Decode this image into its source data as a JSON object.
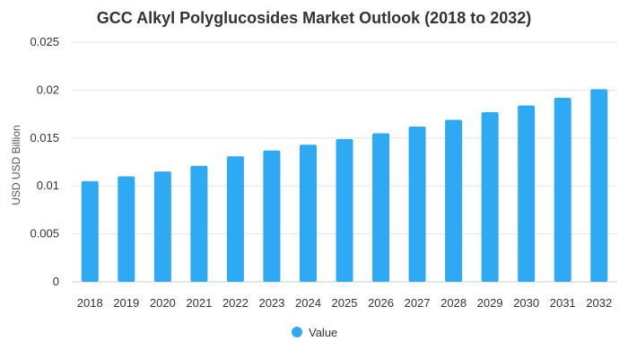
{
  "chart_data": {
    "type": "bar",
    "title": "GCC Alkyl Polyglucosides Market Outlook (2018 to 2032)",
    "xlabel": "",
    "ylabel": "USD USD Billion",
    "ylim": [
      0,
      0.025
    ],
    "yticks": [
      0,
      0.005,
      0.01,
      0.015,
      0.02,
      0.025
    ],
    "ytick_labels": [
      "0",
      "0.005",
      "0.01",
      "0.015",
      "0.02",
      "0.025"
    ],
    "categories": [
      "2018",
      "2019",
      "2020",
      "2021",
      "2022",
      "2023",
      "2024",
      "2025",
      "2026",
      "2027",
      "2028",
      "2029",
      "2030",
      "2031",
      "2032"
    ],
    "series": [
      {
        "name": "Value",
        "values": [
          0.0105,
          0.011,
          0.0115,
          0.0121,
          0.0131,
          0.0137,
          0.0143,
          0.0149,
          0.0155,
          0.0162,
          0.0169,
          0.0177,
          0.0184,
          0.0192,
          0.0201
        ]
      }
    ],
    "legend": "bottom-center",
    "grid": true,
    "colors": {
      "bar": "#2eaaf5",
      "grid": "#e6e6e6",
      "text": "#333333"
    }
  }
}
